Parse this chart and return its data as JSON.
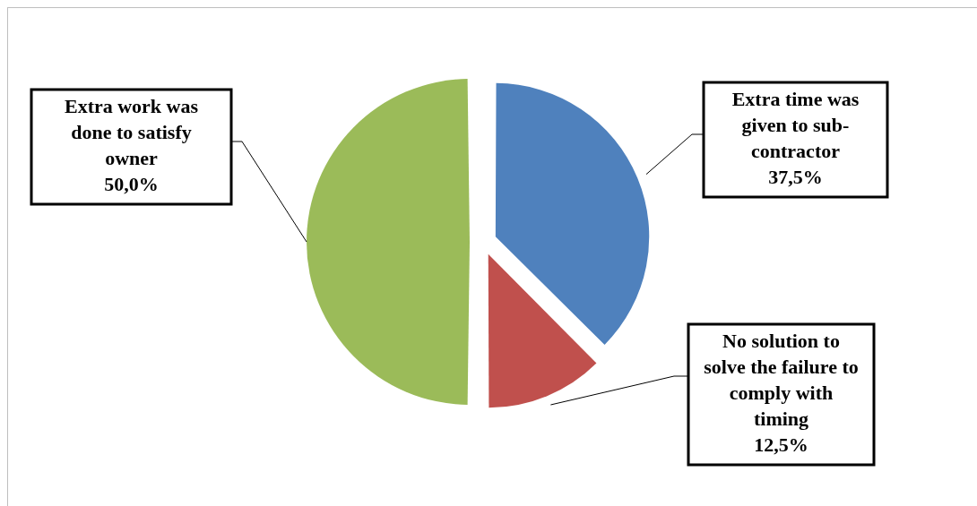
{
  "chart_data": {
    "type": "pie",
    "categories": [
      "Extra time was given to sub-contractor",
      "No solution to solve the failure to comply with timing",
      "Extra work was done to satisfy owner"
    ],
    "values": [
      37.5,
      12.5,
      50.0
    ],
    "value_labels": [
      "37,5%",
      "12,5%",
      "50,0%"
    ],
    "colors": [
      "#4f81bd",
      "#c0504d",
      "#9bbb59"
    ],
    "legend": false
  }
}
